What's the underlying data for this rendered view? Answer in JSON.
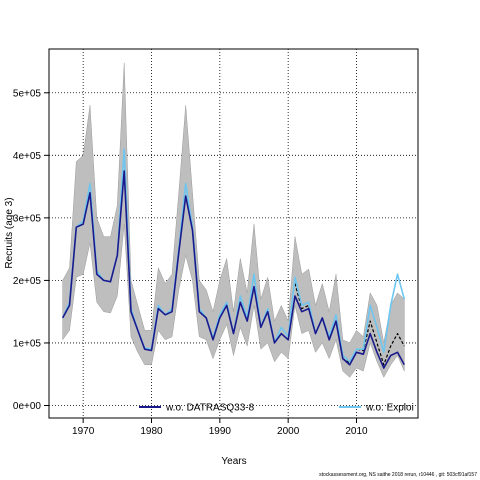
{
  "chart_data": {
    "type": "line",
    "xlabel": "Years",
    "ylabel": "Recruits (age 3)",
    "xlim": [
      1965,
      2019
    ],
    "ylim": [
      -20000,
      570000
    ],
    "x_ticks": [
      1970,
      1980,
      1990,
      2000,
      2010
    ],
    "x_tick_labels": [
      "1970",
      "1980",
      "1990",
      "2000",
      "2010"
    ],
    "y_ticks": [
      0,
      100000,
      200000,
      300000,
      400000,
      500000
    ],
    "y_tick_labels": [
      "0e+00",
      "1e+05",
      "2e+05",
      "3e+05",
      "4e+05",
      "5e+05"
    ],
    "grid": true,
    "legend_position": "bottom",
    "years": [
      1967,
      1968,
      1969,
      1970,
      1971,
      1972,
      1973,
      1974,
      1975,
      1976,
      1977,
      1978,
      1979,
      1980,
      1981,
      1982,
      1983,
      1984,
      1985,
      1986,
      1987,
      1988,
      1989,
      1990,
      1991,
      1992,
      1993,
      1994,
      1995,
      1996,
      1997,
      1998,
      1999,
      2000,
      2001,
      2002,
      2003,
      2004,
      2005,
      2006,
      2007,
      2008,
      2009,
      2010,
      2011,
      2012,
      2013,
      2014,
      2015,
      2016,
      2017
    ],
    "band": {
      "upper": [
        200000,
        220000,
        390000,
        400000,
        480000,
        300000,
        270000,
        270000,
        320000,
        548000,
        200000,
        160000,
        120000,
        120000,
        220000,
        195000,
        210000,
        340000,
        480000,
        340000,
        200000,
        185000,
        150000,
        200000,
        235000,
        150000,
        235000,
        180000,
        290000,
        170000,
        205000,
        135000,
        160000,
        135000,
        270000,
        210000,
        218000,
        160000,
        195000,
        150000,
        210000,
        105000,
        100000,
        120000,
        110000,
        180000,
        160000,
        100000,
        160000,
        180000,
        170000
      ],
      "lower": [
        105000,
        120000,
        205000,
        210000,
        260000,
        165000,
        150000,
        148000,
        175000,
        290000,
        110000,
        85000,
        65000,
        65000,
        120000,
        105000,
        110000,
        185000,
        240000,
        200000,
        110000,
        105000,
        75000,
        105000,
        130000,
        80000,
        125000,
        95000,
        160000,
        90000,
        100000,
        70000,
        85000,
        75000,
        160000,
        115000,
        120000,
        85000,
        100000,
        75000,
        105000,
        55000,
        45000,
        60000,
        55000,
        100000,
        70000,
        45000,
        65000,
        80000,
        55000
      ]
    },
    "series": [
      {
        "name": "w.o. DATRASQ33-8",
        "color": "#1a1a8c",
        "values": [
          140000,
          160000,
          285000,
          290000,
          340000,
          210000,
          200000,
          198000,
          240000,
          375000,
          150000,
          120000,
          90000,
          88000,
          155000,
          145000,
          150000,
          245000,
          335000,
          280000,
          150000,
          140000,
          105000,
          140000,
          160000,
          115000,
          165000,
          135000,
          190000,
          125000,
          150000,
          100000,
          115000,
          105000,
          175000,
          150000,
          155000,
          115000,
          140000,
          105000,
          135000,
          75000,
          65000,
          85000,
          82000,
          115000,
          85000,
          60000,
          80000,
          85000,
          65000
        ]
      },
      {
        "name": "w.o. Exploi",
        "color": "#6ec6f0",
        "values": [
          140000,
          165000,
          285000,
          295000,
          355000,
          215000,
          200000,
          198000,
          240000,
          410000,
          155000,
          120000,
          92000,
          90000,
          160000,
          145000,
          155000,
          250000,
          355000,
          285000,
          155000,
          140000,
          108000,
          145000,
          165000,
          115000,
          175000,
          140000,
          210000,
          125000,
          155000,
          100000,
          125000,
          110000,
          205000,
          160000,
          165000,
          115000,
          140000,
          110000,
          145000,
          80000,
          70000,
          90000,
          90000,
          160000,
          125000,
          85000,
          160000,
          210000,
          170000
        ]
      },
      {
        "name": "",
        "color": "#000000",
        "dashed": true,
        "values": [
          null,
          null,
          null,
          null,
          null,
          null,
          null,
          null,
          null,
          null,
          null,
          null,
          null,
          null,
          null,
          null,
          null,
          null,
          null,
          null,
          null,
          null,
          null,
          null,
          null,
          null,
          null,
          null,
          null,
          null,
          null,
          null,
          null,
          null,
          195000,
          155000,
          160000,
          115000,
          140000,
          105000,
          135000,
          75000,
          68000,
          90000,
          88000,
          135000,
          100000,
          65000,
          95000,
          115000,
          95000
        ]
      }
    ]
  },
  "footer": {
    "text": "stockassessment.org, NS saithe 2018 rerun, r10446 , git: 503cf91af157"
  }
}
